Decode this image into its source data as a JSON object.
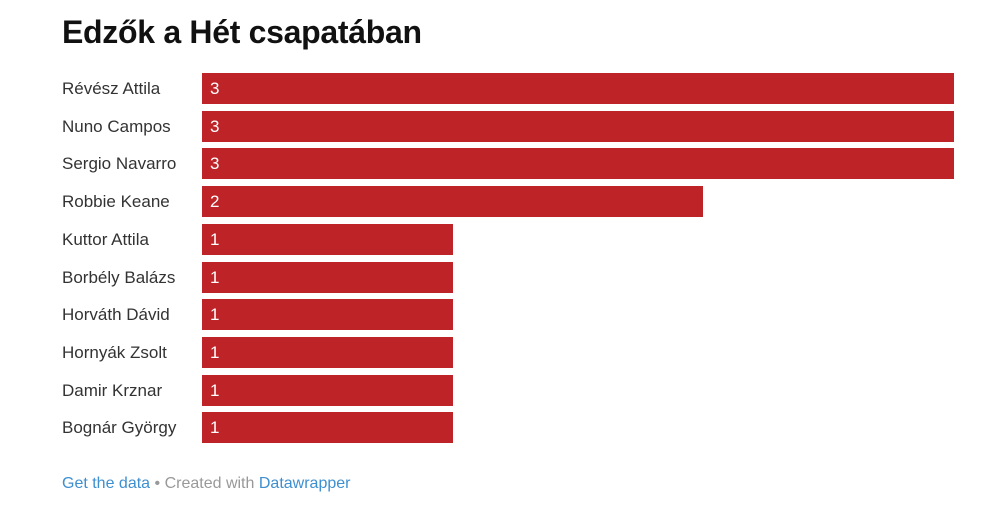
{
  "chart_data": {
    "type": "bar",
    "title": "Edzők a Hét csapatában",
    "categories": [
      "Révész Attila",
      "Nuno Campos",
      "Sergio Navarro",
      "Robbie Keane",
      "Kuttor Attila",
      "Borbély Balázs",
      "Horváth Dávid",
      "Hornyák Zsolt",
      "Damir Krznar",
      "Bognár György"
    ],
    "values": [
      3,
      3,
      3,
      2,
      1,
      1,
      1,
      1,
      1,
      1
    ],
    "xlim": [
      0,
      3
    ],
    "bar_color": "#be2328",
    "xlabel": "",
    "ylabel": ""
  },
  "footer": {
    "get_data": "Get the data",
    "separator": "•",
    "created_with": "Created with",
    "datawrapper": "Datawrapper"
  }
}
